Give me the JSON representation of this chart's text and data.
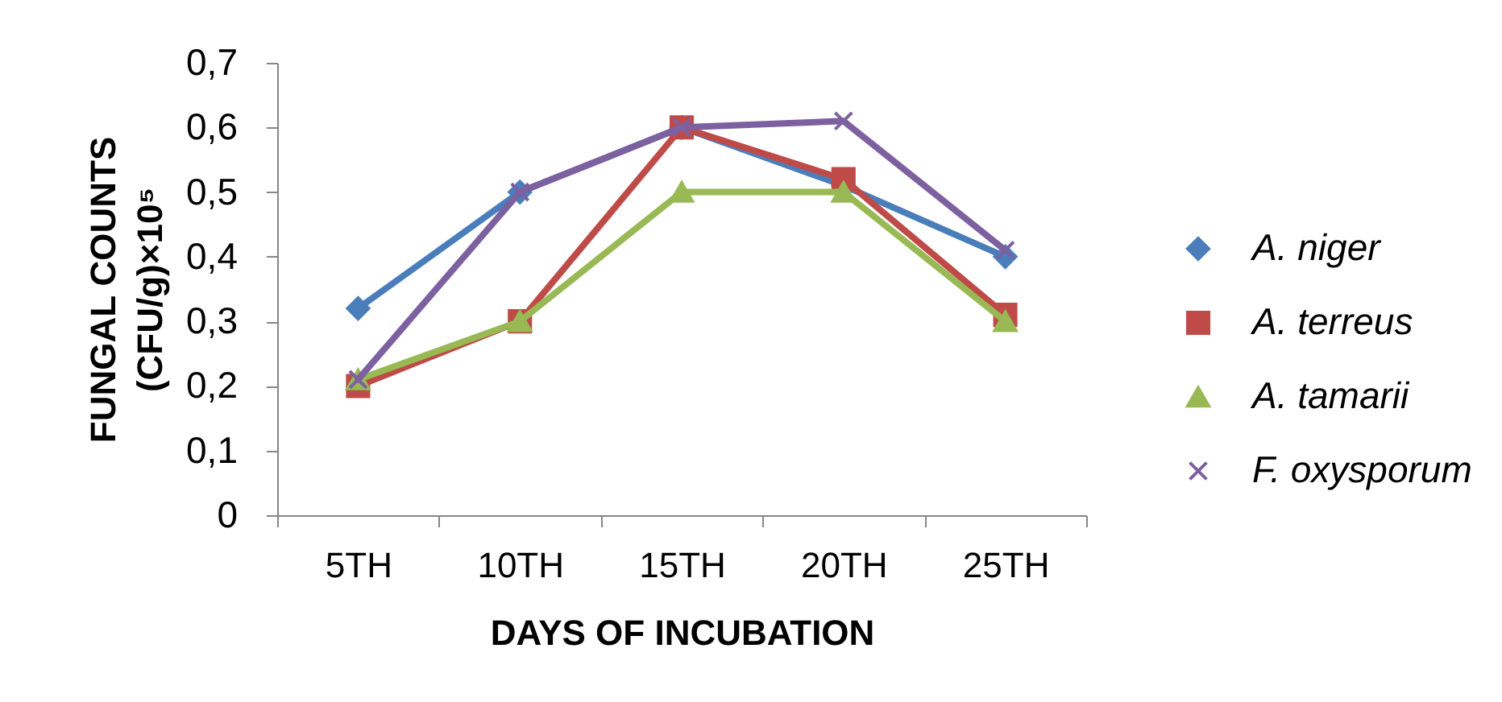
{
  "chart_data": {
    "type": "line",
    "xlabel": "DAYS OF INCUBATION",
    "ylabel": "FUNGAL COUNTS\n(CFU/g)×10⁵",
    "categories": [
      "5TH",
      "10TH",
      "15TH",
      "20TH",
      "25TH"
    ],
    "series": [
      {
        "name": "A. niger",
        "color": "#4a7ebb",
        "marker": "diamond",
        "values": [
          0.32,
          0.5,
          0.6,
          0.51,
          0.4
        ]
      },
      {
        "name": "A. terreus",
        "color": "#be4b48",
        "marker": "square",
        "values": [
          0.2,
          0.3,
          0.6,
          0.52,
          0.31
        ]
      },
      {
        "name": "A. tamarii",
        "color": "#98b954",
        "marker": "triangle",
        "values": [
          0.21,
          0.3,
          0.5,
          0.5,
          0.3
        ]
      },
      {
        "name": "F. oxysporum",
        "color": "#7d60a0",
        "marker": "cross",
        "values": [
          0.21,
          0.5,
          0.6,
          0.61,
          0.41
        ]
      }
    ],
    "ylim": [
      0,
      0.7
    ],
    "yticks": [
      0,
      {
        "value": 0.1,
        "label": "0,1"
      },
      {
        "value": 0.2,
        "label": "0,2"
      },
      {
        "value": 0.3,
        "label": "0,3"
      },
      {
        "value": 0.4,
        "label": "0,4"
      },
      {
        "value": 0.5,
        "label": "0,5"
      },
      {
        "value": 0.6,
        "label": "0,6"
      },
      {
        "value": 0.7,
        "label": "0,7"
      }
    ],
    "grid": false,
    "legend": "right",
    "line_style": "solid"
  }
}
